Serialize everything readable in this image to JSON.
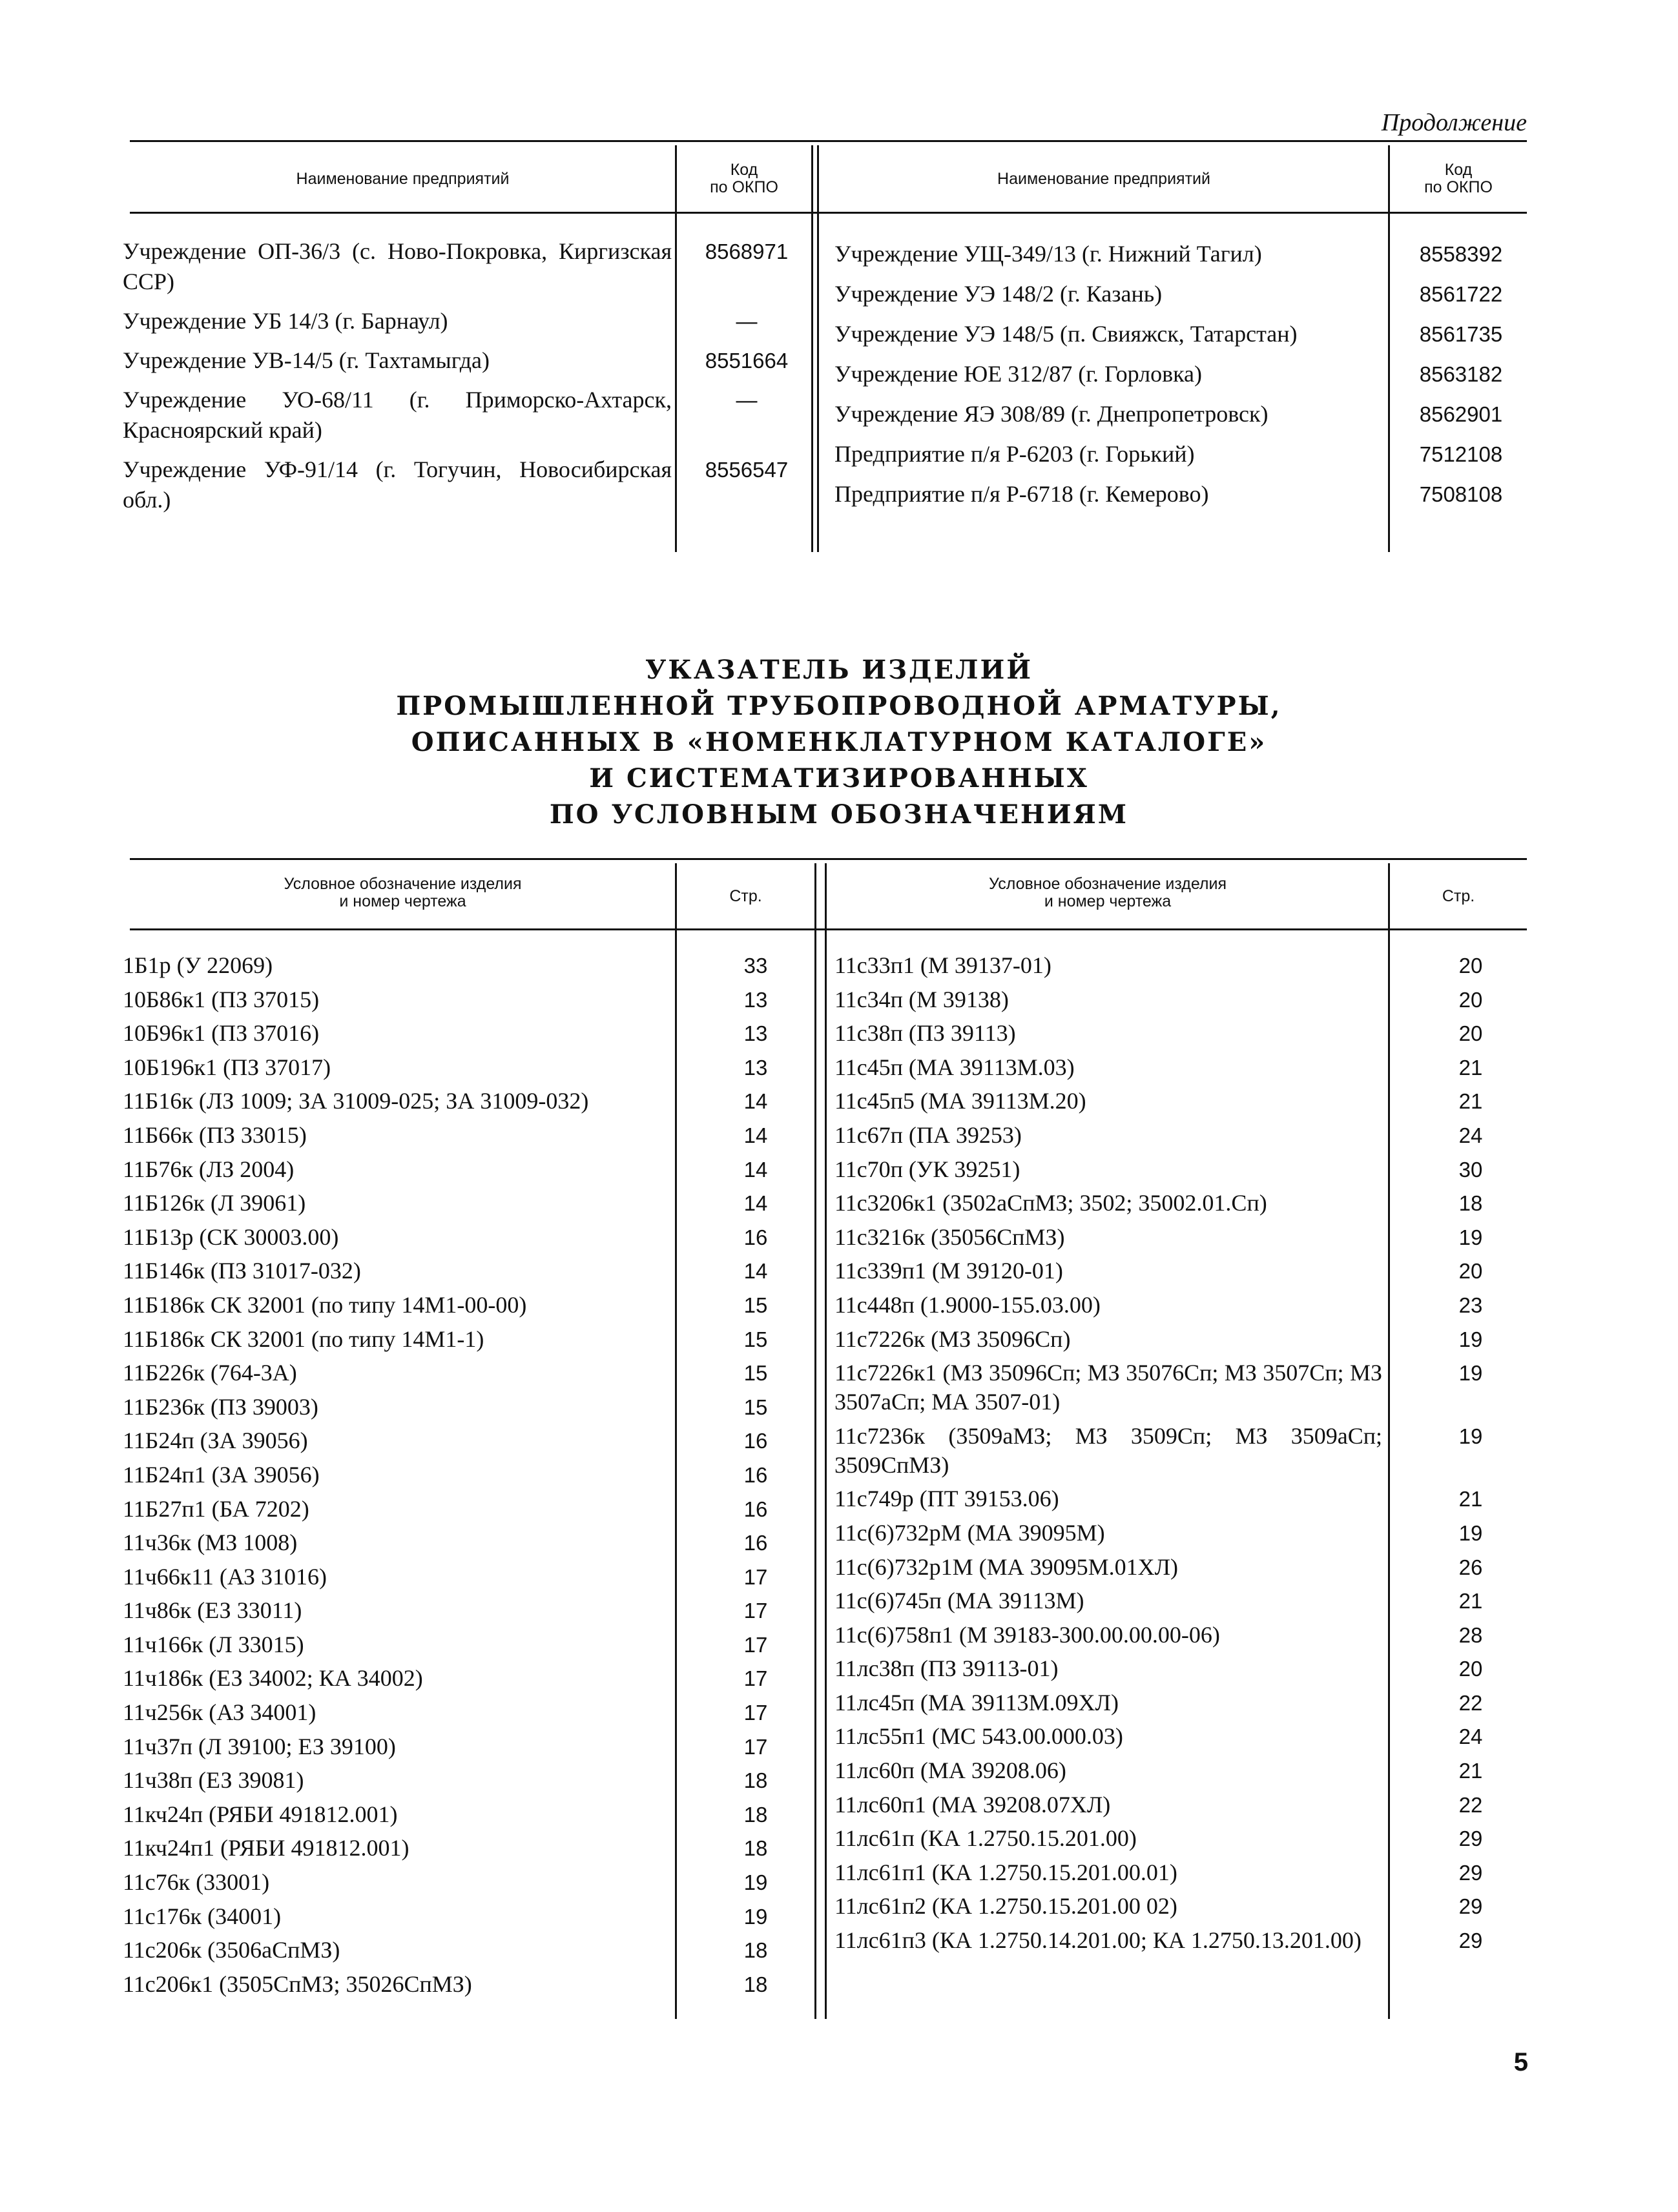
{
  "continuation_label": "Продолжение",
  "enterprises_table": {
    "headers": {
      "name": "Наименование предприятий",
      "code_line1": "Код",
      "code_line2": "по ОКПО"
    },
    "left_rows": [
      {
        "name": "Учреждение ОП-36/3 (с. Ново-Покровка, Киргизская ССР)",
        "code": "8568971"
      },
      {
        "name": "Учреждение УБ 14/3 (г. Барнаул)",
        "code": "—"
      },
      {
        "name": "Учреждение УВ-14/5 (г. Тахтамыгда)",
        "code": "8551664"
      },
      {
        "name": "Учреждение УО-68/11 (г. Приморско-Ахтарск, Красноярский край)",
        "code": "—"
      },
      {
        "name": "Учреждение УФ-91/14 (г. Тогучин, Новосибирская обл.)",
        "code": "8556547"
      }
    ],
    "right_rows": [
      {
        "name": "Учреждение УЩ-349/13 (г. Нижний Тагил)",
        "code": "8558392"
      },
      {
        "name": "Учреждение УЭ 148/2 (г. Казань)",
        "code": "8561722"
      },
      {
        "name": "Учреждение УЭ 148/5 (п. Свияжск, Татарстан)",
        "code": "8561735"
      },
      {
        "name": "Учреждение ЮЕ 312/87 (г. Горловка)",
        "code": "8563182"
      },
      {
        "name": "Учреждение ЯЭ 308/89 (г. Днепропетровск)",
        "code": "8562901"
      },
      {
        "name": "Предприятие п/я Р-6203 (г. Горький)",
        "code": "7512108"
      },
      {
        "name": "Предприятие п/я Р-6718 (г. Кемерово)",
        "code": "7508108"
      }
    ]
  },
  "section_title": [
    "УКАЗАТЕЛЬ ИЗДЕЛИЙ",
    "ПРОМЫШЛЕННОЙ ТРУБОПРОВОДНОЙ АРМАТУРЫ,",
    "ОПИСАННЫХ В «НОМЕНКЛАТУРНОМ КАТАЛОГЕ»",
    "И СИСТЕМАТИЗИРОВАННЫХ",
    "ПО УСЛОВНЫМ ОБОЗНАЧЕНИЯМ"
  ],
  "index_table": {
    "headers": {
      "item_line1": "Условное обозначение изделия",
      "item_line2": "и номер чертежа",
      "page": "Стр."
    },
    "left_rows": [
      {
        "item": "1Б1р (У 22069)",
        "page": "33"
      },
      {
        "item": "10Б86к1 (ПЗ 37015)",
        "page": "13"
      },
      {
        "item": "10Б96к1 (ПЗ 37016)",
        "page": "13"
      },
      {
        "item": "10Б196к1 (ПЗ 37017)",
        "page": "13"
      },
      {
        "item": "11Б16к (ЛЗ 1009; ЗА 31009-025; ЗА 31009-032)",
        "page": "14"
      },
      {
        "item": "11Б66к (ПЗ 33015)",
        "page": "14"
      },
      {
        "item": "11Б76к (ЛЗ 2004)",
        "page": "14"
      },
      {
        "item": "11Б126к (Л 39061)",
        "page": "14"
      },
      {
        "item": "11Б13р (СК 30003.00)",
        "page": "16"
      },
      {
        "item": "11Б146к (ПЗ 31017-032)",
        "page": "14"
      },
      {
        "item": "11Б186к СК 32001 (по типу 14М1-00-00)",
        "page": "15"
      },
      {
        "item": "11Б186к СК 32001 (по типу 14М1-1)",
        "page": "15"
      },
      {
        "item": "11Б226к (764-3А)",
        "page": "15"
      },
      {
        "item": "11Б236к (ПЗ 39003)",
        "page": "15"
      },
      {
        "item": "11Б24п (ЗА 39056)",
        "page": "16"
      },
      {
        "item": "11Б24п1 (ЗА 39056)",
        "page": "16"
      },
      {
        "item": "11Б27п1 (БА 7202)",
        "page": "16"
      },
      {
        "item": "11ч36к (МЗ 1008)",
        "page": "16"
      },
      {
        "item": "11ч66к11 (АЗ 31016)",
        "page": "17"
      },
      {
        "item": "11ч86к (ЕЗ 33011)",
        "page": "17"
      },
      {
        "item": "11ч166к (Л 33015)",
        "page": "17"
      },
      {
        "item": "11ч186к (ЕЗ 34002; КА 34002)",
        "page": "17"
      },
      {
        "item": "11ч256к (АЗ 34001)",
        "page": "17"
      },
      {
        "item": "11ч37п (Л 39100; ЕЗ 39100)",
        "page": "17"
      },
      {
        "item": "11ч38п (ЕЗ 39081)",
        "page": "18"
      },
      {
        "item": "11кч24п (РЯБИ 491812.001)",
        "page": "18"
      },
      {
        "item": "11кч24п1 (РЯБИ 491812.001)",
        "page": "18"
      },
      {
        "item": "11с76к (33001)",
        "page": "19"
      },
      {
        "item": "11с176к (34001)",
        "page": "19"
      },
      {
        "item": "11с206к (3506аСпМЗ)",
        "page": "18"
      },
      {
        "item": "11с206к1 (3505СпМЗ; 35026СпМЗ)",
        "page": "18"
      }
    ],
    "right_rows": [
      {
        "item": "11с33п1 (М 39137-01)",
        "page": "20"
      },
      {
        "item": "11с34п (М 39138)",
        "page": "20"
      },
      {
        "item": "11с38п (ПЗ 39113)",
        "page": "20"
      },
      {
        "item": "11с45п (МА 39113М.03)",
        "page": "21"
      },
      {
        "item": "11с45п5 (МА 39113М.20)",
        "page": "21"
      },
      {
        "item": "11с67п (ПА 39253)",
        "page": "24"
      },
      {
        "item": "11с70п (УК 39251)",
        "page": "30"
      },
      {
        "item": "11с3206к1 (3502аСпМЗ; 3502; 35002.01.Сп)",
        "page": "18"
      },
      {
        "item": "11с3216к (35056СпМЗ)",
        "page": "19"
      },
      {
        "item": "11с339п1 (М 39120-01)",
        "page": "20"
      },
      {
        "item": "11с448п (1.9000-155.03.00)",
        "page": "23"
      },
      {
        "item": "11с7226к (МЗ 35096Сп)",
        "page": "19"
      },
      {
        "item": "11с7226к1 (МЗ 35096Сп; МЗ 35076Сп; МЗ 3507Сп; МЗ 3507аСп; МА 3507-01)",
        "page": "19"
      },
      {
        "item": "11с7236к (3509аМЗ; МЗ 3509Сп; МЗ 3509аСп; 3509СпМЗ)",
        "page": "19"
      },
      {
        "item": "11с749р (ПТ 39153.06)",
        "page": "21"
      },
      {
        "item": "11с(6)732рМ (МА 39095М)",
        "page": "19"
      },
      {
        "item": "11с(6)732р1М (МА 39095М.01ХЛ)",
        "page": "26"
      },
      {
        "item": "11с(6)745п (МА 39113М)",
        "page": "21"
      },
      {
        "item": "11с(6)758п1 (М 39183-300.00.00.00-06)",
        "page": "28"
      },
      {
        "item": "11лс38п (ПЗ 39113-01)",
        "page": "20"
      },
      {
        "item": "11лс45п (МА 39113М.09ХЛ)",
        "page": "22"
      },
      {
        "item": "11лс55п1 (МС 543.00.000.03)",
        "page": "24"
      },
      {
        "item": "11лс60п (МА 39208.06)",
        "page": "21"
      },
      {
        "item": "11лс60п1 (МА 39208.07ХЛ)",
        "page": "22"
      },
      {
        "item": "11лс61п (КА 1.2750.15.201.00)",
        "page": "29"
      },
      {
        "item": "11лс61п1 (КА 1.2750.15.201.00.01)",
        "page": "29"
      },
      {
        "item": "11лс61п2 (КА 1.2750.15.201.00 02)",
        "page": "29"
      },
      {
        "item": "11лс61п3 (КА 1.2750.14.201.00; КА 1.2750.13.201.00)",
        "page": "29"
      }
    ]
  },
  "page_number": "5"
}
